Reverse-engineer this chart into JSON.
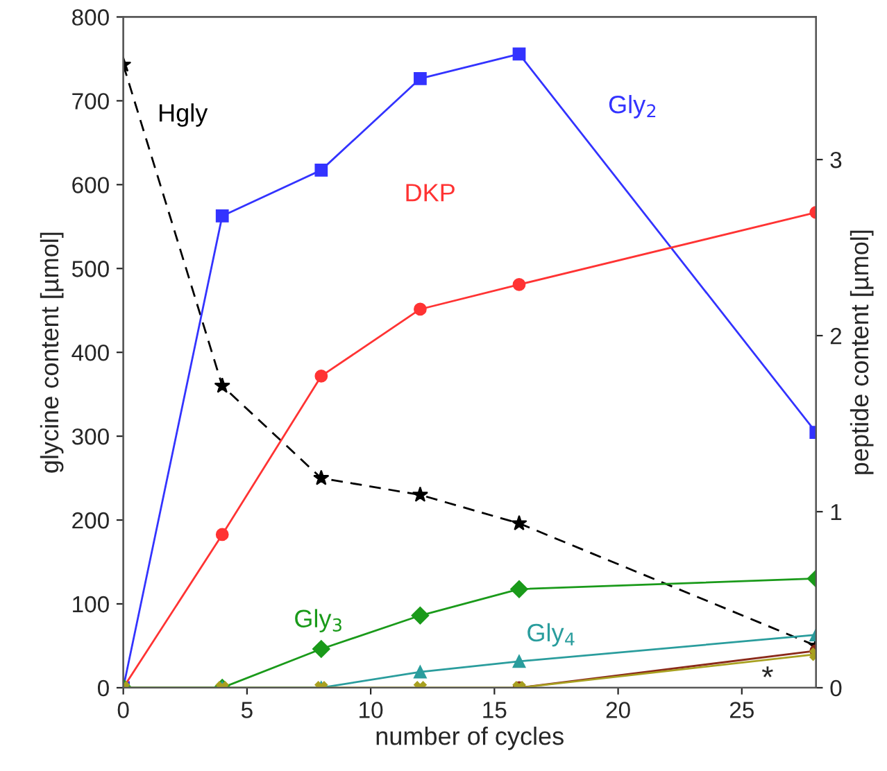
{
  "chart_data": {
    "type": "line",
    "xlabel": "number of cycles",
    "ylabel": "glycine content [µmol]",
    "y2label": "peptide content [µmol]",
    "xlim": [
      0,
      28
    ],
    "xticks": [
      0,
      5,
      10,
      15,
      20,
      25
    ],
    "ylim": [
      0,
      800
    ],
    "yticks": [
      0,
      100,
      200,
      300,
      400,
      500,
      600,
      700,
      800
    ],
    "y2lim": [
      0,
      3.81
    ],
    "y2ticks": [
      0,
      1,
      2,
      3
    ],
    "grid": false,
    "legend": false,
    "x": [
      0,
      4,
      8,
      12,
      16,
      28
    ],
    "series": [
      {
        "name": "Hgly",
        "color": "#000000",
        "values": [
          743,
          360,
          250,
          230,
          196,
          50
        ],
        "marker": "star",
        "line_style": "dashed"
      },
      {
        "name": "Gly$_{2}$",
        "color": "#3333ff",
        "values": [
          0,
          2.68,
          2.94,
          3.46,
          3.6,
          1.45
        ],
        "marker": "square",
        "line_style": "solid",
        "axis": "y2"
      },
      {
        "name": "DKP",
        "color": "#ff3333",
        "values": [
          0,
          0.87,
          1.77,
          2.15,
          2.29,
          2.7
        ],
        "marker": "circle",
        "line_style": "solid",
        "axis": "y2"
      },
      {
        "name": "Gly$_{3}$",
        "color": "#1a9a1a",
        "values": [
          0,
          0,
          0.22,
          0.41,
          0.56,
          0.62
        ],
        "marker": "diamond",
        "line_style": "solid",
        "axis": "y2"
      },
      {
        "name": "Gly$_{4}$",
        "color": "#2a9d9d",
        "values": [
          0,
          0,
          0,
          0.09,
          0.15,
          0.3
        ],
        "marker": "triangle",
        "line_style": "solid",
        "axis": "y2"
      },
      {
        "color": "#8b2a1a",
        "values": [
          null,
          null,
          null,
          null,
          0,
          0.21
        ],
        "marker": "circle",
        "line_style": "solid",
        "axis": "y2"
      },
      {
        "color": "#a8a020",
        "values": [
          0,
          0,
          0,
          0,
          0,
          0.19
        ],
        "marker": "cross",
        "line_style": "solid",
        "axis": "y2"
      }
    ],
    "annotations": [
      "*"
    ]
  }
}
